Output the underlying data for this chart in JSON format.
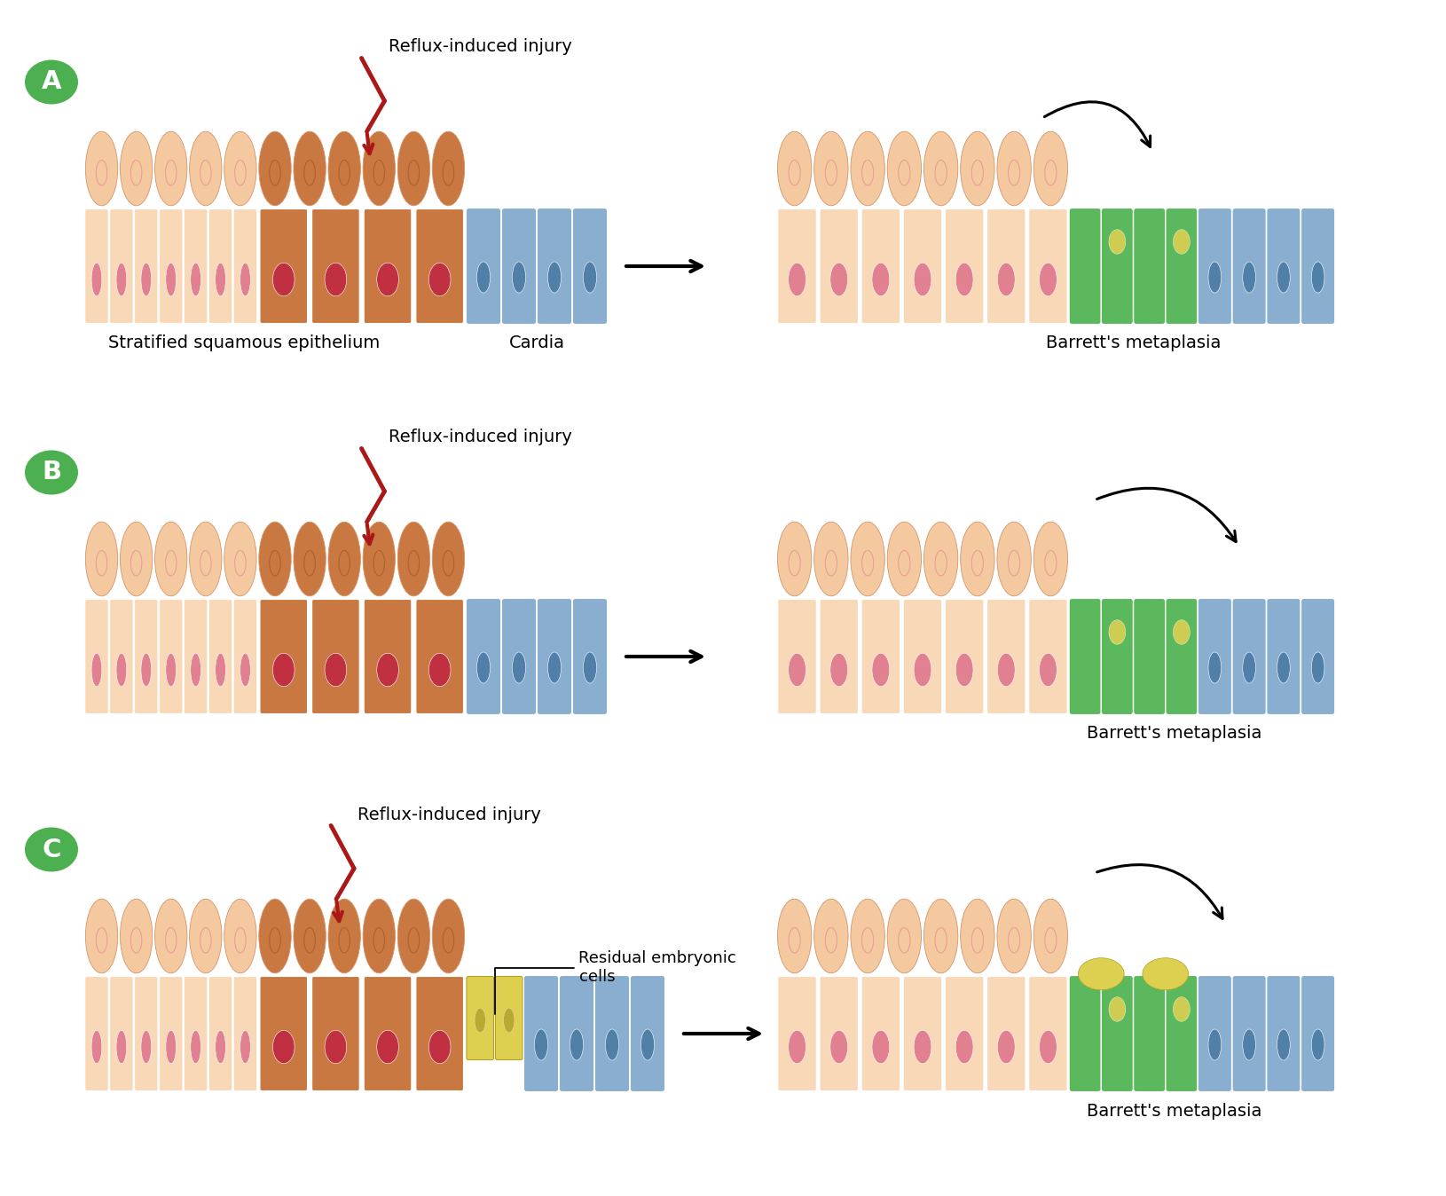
{
  "bg_color": "#ffffff",
  "green_badge": "#4CAF50",
  "col_sq_light": "#f5c9a0",
  "col_sq_outline": "#d4956a",
  "col_inj": "#c87840",
  "col_inj_dark": "#a05020",
  "col_base_light": "#f9d8b8",
  "col_base_med": "#f0c090",
  "col_nuc_pink": "#e08090",
  "col_nuc_dark": "#c03040",
  "col_blue": "#8aaed0",
  "col_blue_dark": "#6090b8",
  "col_blue_nuc": "#5080a8",
  "col_green": "#5cb85c",
  "col_green_dark": "#3a8a3a",
  "col_yellow": "#ddd050",
  "col_red": "#aa1818",
  "text_reflux": "Reflux-induced injury",
  "text_cardia": "Cardia",
  "text_squamous": "Stratified squamous epithelium",
  "text_barretts": "Barrett's metaplasia",
  "text_residual": "Residual embryonic\ncells"
}
